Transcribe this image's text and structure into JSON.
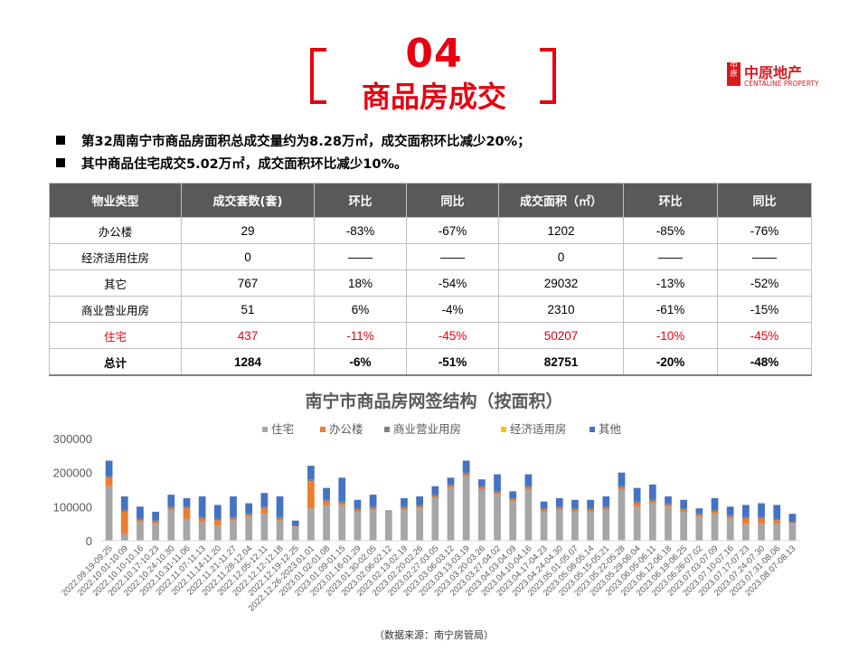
{
  "header": {
    "section_number": "04",
    "section_title": "商品房成交",
    "logo_text": "中原地产",
    "logo_subtext": "CENTALINE PROPERTY",
    "logo_mark_text": "中原"
  },
  "bullets": [
    "第32周南宁市商品房面积总成交量约为8.28万㎡，成交面积环比减少20%；",
    "其中商品住宅成交5.02万㎡，成交面积环比减少10%。"
  ],
  "table": {
    "headers": [
      "物业类型",
      "成交套数(套)",
      "环比",
      "同比",
      "成交面积（㎡）",
      "环比",
      "同比"
    ],
    "rows": [
      [
        "办公楼",
        "29",
        "-83%",
        "-67%",
        "1202",
        "-85%",
        "-76%"
      ],
      [
        "经济适用住房",
        "0",
        "——",
        "——",
        "0",
        "——",
        "——"
      ],
      [
        "其它",
        "767",
        "18%",
        "-54%",
        "29032",
        "-13%",
        "-52%"
      ],
      [
        "商业营业用房",
        "51",
        "6%",
        "-4%",
        "2310",
        "-61%",
        "-15%"
      ],
      [
        "住宅",
        "437",
        "-11%",
        "-45%",
        "50207",
        "-10%",
        "-45%"
      ],
      [
        "总计",
        "1284",
        "-6%",
        "-51%",
        "82751",
        "-20%",
        "-48%"
      ]
    ]
  },
  "chart_data": {
    "type": "bar",
    "stacked": true,
    "title": "南宁市商品房网签结构（按面积）",
    "legend_position": "top",
    "ylim": [
      0,
      300000
    ],
    "yticks": [
      0,
      100000,
      200000,
      300000
    ],
    "grid": false,
    "categories": [
      "2022.09.19-09.25",
      "2022.10.01-10.09",
      "2022.10.10-10.16",
      "2022.10.17-10.23",
      "2022.10.24-10.30",
      "2022.10.31-11.06",
      "2022.11.07-11.13",
      "2022.11.14-11.20",
      "2022.11.21-11.27",
      "2022.11.28-12.04",
      "2022.12.05-12.11",
      "2022.12.12-12.18",
      "2022.12.19-12.25",
      "2022.12.26-2023.01.01",
      "2023.01.02-01.08",
      "2023.01.09-01.15",
      "2023.01.16-01.29",
      "2023.01.30-02.05",
      "2023.02.06-02.12",
      "2023.02.13-02.19",
      "2023.02.20-02.26",
      "2023.02.27-03.05",
      "2023.03.06-03.12",
      "2023.03.13-03.19",
      "2023.03.20-03.26",
      "2023.03.27-04.02",
      "2023.04.03-04.09",
      "2023.04.10-04.16",
      "2023.04.17-04.23",
      "2023.04.24-04.30",
      "2023.05.01-05.07",
      "2023.05.08-05.14",
      "2023.05.15-05.21",
      "2023.05.22-05.28",
      "2023.05.29-06.04",
      "2023.06.05-06.11",
      "2023.06.12-06.18",
      "2023.06.19-06.25",
      "2023.06.26-07.02",
      "2023.07.03-07.09",
      "2023.07.10-07.16",
      "2023.07.17-07.23",
      "2023.07.24-07.30",
      "2023.07.31-08.06",
      "2023.08.07-08.13"
    ],
    "series": [
      {
        "name": "住宅",
        "color": "#a6a6a6",
        "values": [
          160000,
          20000,
          55000,
          50000,
          90000,
          65000,
          55000,
          45000,
          60000,
          70000,
          80000,
          60000,
          40000,
          95000,
          105000,
          105000,
          85000,
          90000,
          85000,
          90000,
          95000,
          125000,
          155000,
          190000,
          150000,
          135000,
          115000,
          150000,
          85000,
          90000,
          85000,
          85000,
          90000,
          150000,
          100000,
          110000,
          100000,
          85000,
          70000,
          80000,
          65000,
          50000,
          50000,
          50000,
          50000
        ]
      },
      {
        "name": "办公楼",
        "color": "#ed7d31",
        "values": [
          25000,
          65000,
          5000,
          5000,
          5000,
          30000,
          10000,
          15000,
          5000,
          5000,
          15000,
          5000,
          2000,
          80000,
          10000,
          5000,
          5000,
          5000,
          2000,
          5000,
          5000,
          5000,
          5000,
          5000,
          5000,
          5000,
          5000,
          5000,
          5000,
          5000,
          5000,
          5000,
          5000,
          5000,
          10000,
          5000,
          5000,
          5000,
          5000,
          5000,
          5000,
          15000,
          15000,
          10000,
          3000
        ]
      },
      {
        "name": "商业营业用房",
        "color": "#808080",
        "values": [
          5000,
          5000,
          5000,
          5000,
          5000,
          5000,
          5000,
          5000,
          5000,
          5000,
          5000,
          5000,
          2000,
          5000,
          5000,
          5000,
          5000,
          5000,
          2000,
          5000,
          5000,
          5000,
          5000,
          5000,
          5000,
          5000,
          5000,
          5000,
          5000,
          5000,
          5000,
          5000,
          5000,
          5000,
          5000,
          5000,
          5000,
          5000,
          5000,
          5000,
          5000,
          5000,
          5000,
          5000,
          2000
        ]
      },
      {
        "name": "经济适用房",
        "color": "#ffc000",
        "values": [
          0,
          0,
          0,
          0,
          0,
          0,
          0,
          0,
          0,
          0,
          0,
          0,
          0,
          0,
          0,
          0,
          0,
          0,
          0,
          0,
          0,
          0,
          0,
          0,
          0,
          0,
          0,
          0,
          0,
          0,
          0,
          0,
          0,
          0,
          0,
          0,
          0,
          0,
          0,
          0,
          0,
          0,
          0,
          0,
          0
        ]
      },
      {
        "name": "其他",
        "color": "#4472c4",
        "values": [
          45000,
          40000,
          35000,
          25000,
          35000,
          25000,
          60000,
          40000,
          60000,
          30000,
          40000,
          60000,
          15000,
          40000,
          35000,
          70000,
          25000,
          35000,
          0,
          25000,
          25000,
          25000,
          20000,
          35000,
          20000,
          50000,
          20000,
          35000,
          20000,
          25000,
          25000,
          25000,
          30000,
          40000,
          40000,
          45000,
          20000,
          25000,
          15000,
          35000,
          25000,
          35000,
          40000,
          40000,
          24000
        ]
      }
    ]
  },
  "source_note": "（数据来源：南宁房管局）"
}
